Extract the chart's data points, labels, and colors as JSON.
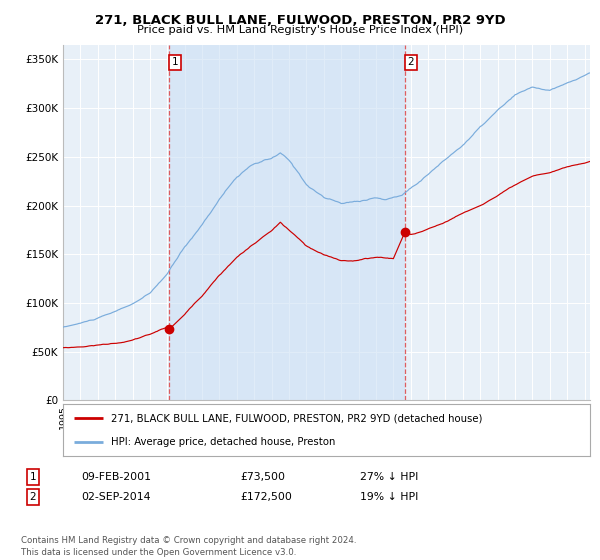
{
  "title": "271, BLACK BULL LANE, FULWOOD, PRESTON, PR2 9YD",
  "subtitle": "Price paid vs. HM Land Registry's House Price Index (HPI)",
  "ylabel_ticks": [
    "£0",
    "£50K",
    "£100K",
    "£150K",
    "£200K",
    "£250K",
    "£300K",
    "£350K"
  ],
  "ytick_vals": [
    0,
    50000,
    100000,
    150000,
    200000,
    250000,
    300000,
    350000
  ],
  "ylim": [
    0,
    365000
  ],
  "xlim_start": 1995.0,
  "xlim_end": 2025.3,
  "sale1_year": 2001.11,
  "sale1_price": 73500,
  "sale2_year": 2014.67,
  "sale2_price": 172500,
  "red_color": "#cc0000",
  "blue_color": "#7aacdc",
  "vline_color": "#dd4444",
  "shade_color": "#cce0f5",
  "plot_bg": "#e8f0f8",
  "legend_label_red": "271, BLACK BULL LANE, FULWOOD, PRESTON, PR2 9YD (detached house)",
  "legend_label_blue": "HPI: Average price, detached house, Preston",
  "annotation1": [
    "1",
    "09-FEB-2001",
    "£73,500",
    "27% ↓ HPI"
  ],
  "annotation2": [
    "2",
    "02-SEP-2014",
    "£172,500",
    "19% ↓ HPI"
  ],
  "copyright": "Contains HM Land Registry data © Crown copyright and database right 2024.\nThis data is licensed under the Open Government Licence v3.0."
}
